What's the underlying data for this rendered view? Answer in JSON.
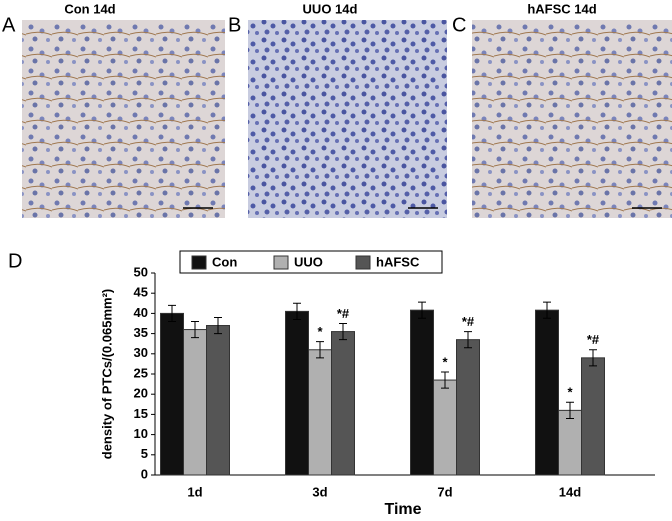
{
  "panels": [
    {
      "label": "A",
      "title": "Con 14d"
    },
    {
      "label": "B",
      "title": "UUO 14d"
    },
    {
      "label": "C",
      "title": "hAFSC 14d"
    }
  ],
  "chart_data": {
    "type": "bar",
    "label": "D",
    "ylabel": "density of PTCs/(0.065mm²)",
    "xlabel": "Time",
    "categories": [
      "1d",
      "3d",
      "7d",
      "14d"
    ],
    "series": [
      {
        "name": "Con",
        "color": "#111111",
        "values": [
          40,
          40.5,
          40.8,
          40.8
        ],
        "errors": [
          2,
          2,
          2,
          2
        ],
        "annotations": [
          null,
          null,
          null,
          null
        ]
      },
      {
        "name": "UUO",
        "color": "#b0b0b0",
        "values": [
          36,
          31,
          23.5,
          16
        ],
        "errors": [
          2,
          2,
          2,
          2
        ],
        "annotations": [
          null,
          "*",
          "*",
          "*"
        ]
      },
      {
        "name": "hAFSC",
        "color": "#555555",
        "values": [
          37,
          35.5,
          33.5,
          29
        ],
        "errors": [
          2,
          2,
          2,
          2
        ],
        "annotations": [
          null,
          "*#",
          "*#",
          "*#"
        ]
      }
    ],
    "ylim": [
      0,
      50
    ],
    "yticks": [
      0,
      5,
      10,
      15,
      20,
      25,
      30,
      35,
      40,
      45,
      50
    ]
  }
}
